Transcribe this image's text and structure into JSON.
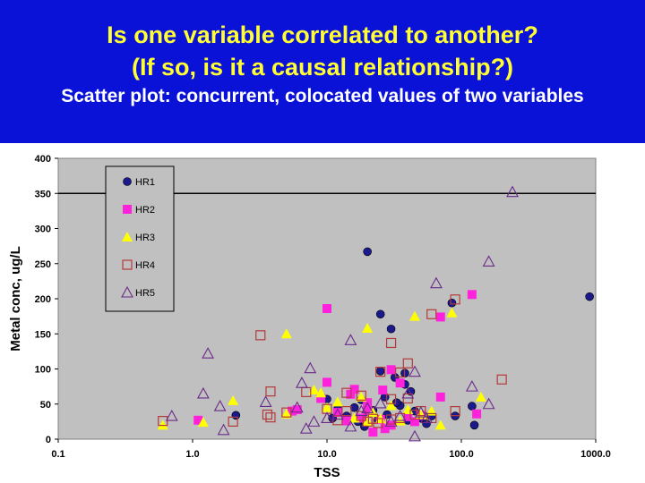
{
  "slide": {
    "title_line1": "Is one variable correlated to another?",
    "title_line2": "(If so, is it a causal relationship?)",
    "subtitle": "Scatter plot: concurrent, colocated values of two variables"
  },
  "colors": {
    "banner": "#0a12d8",
    "title_text": "#ffff33",
    "subtitle_text": "#ffffff",
    "plot_bg": "#c0c0c0",
    "HR1": "#1a1a8c",
    "HR2": "#ff22dd",
    "HR3": "#ffff00",
    "HR4": "#b33a3a",
    "HR5": "#6a2a8a"
  },
  "chart_data": {
    "type": "scatter",
    "title": "",
    "xlabel": "TSS",
    "ylabel": "Metal conc, ug/L",
    "x_scale": "log",
    "xlim": [
      0.1,
      1000
    ],
    "ylim": [
      0,
      400
    ],
    "x_ticks": [
      "0.1",
      "1.0",
      "10.0",
      "100.0",
      "1000.0"
    ],
    "y_ticks": [
      "0",
      "50",
      "100",
      "150",
      "200",
      "250",
      "300",
      "350",
      "400"
    ],
    "grid_y_major": [
      350
    ],
    "legend_position": "top-left",
    "series": [
      {
        "name": "HR1",
        "marker": "circle-filled",
        "points": [
          [
            20,
            267
          ],
          [
            25,
            178
          ],
          [
            30,
            157
          ],
          [
            85,
            194
          ],
          [
            900,
            203
          ],
          [
            25,
            97
          ],
          [
            32,
            88
          ],
          [
            38,
            78
          ],
          [
            42,
            68
          ],
          [
            10,
            57
          ],
          [
            18,
            56
          ],
          [
            35,
            48
          ],
          [
            45,
            40
          ],
          [
            60,
            33
          ],
          [
            120,
            47
          ],
          [
            12,
            43
          ],
          [
            22,
            41
          ],
          [
            28,
            35
          ],
          [
            50,
            30
          ],
          [
            2.1,
            34
          ],
          [
            14,
            33
          ],
          [
            17,
            25
          ],
          [
            40,
            27
          ],
          [
            125,
            20
          ],
          [
            19,
            18
          ],
          [
            55,
            22
          ],
          [
            33,
            52
          ],
          [
            90,
            33
          ],
          [
            11,
            30
          ],
          [
            24,
            28
          ],
          [
            38,
            94
          ],
          [
            16,
            45
          ],
          [
            27,
            60
          ]
        ]
      },
      {
        "name": "HR2",
        "marker": "square-filled",
        "points": [
          [
            10,
            186
          ],
          [
            120,
            206
          ],
          [
            70,
            174
          ],
          [
            30,
            99
          ],
          [
            35,
            80
          ],
          [
            10,
            81
          ],
          [
            26,
            70
          ],
          [
            16,
            71
          ],
          [
            15,
            64
          ],
          [
            9,
            58
          ],
          [
            20,
            52
          ],
          [
            70,
            60
          ],
          [
            5.5,
            40
          ],
          [
            12,
            38
          ],
          [
            18,
            30
          ],
          [
            25,
            28
          ],
          [
            40,
            32
          ],
          [
            30,
            20
          ],
          [
            22,
            10
          ],
          [
            1.1,
            27
          ],
          [
            6,
            42
          ],
          [
            130,
            36
          ],
          [
            45,
            25
          ],
          [
            14,
            26
          ],
          [
            27,
            15
          ],
          [
            20,
            40
          ],
          [
            50,
            34
          ]
        ]
      },
      {
        "name": "HR3",
        "marker": "triangle-filled",
        "points": [
          [
            5,
            150
          ],
          [
            20,
            158
          ],
          [
            45,
            175
          ],
          [
            85,
            180
          ],
          [
            0.6,
            20
          ],
          [
            1.2,
            24
          ],
          [
            2,
            55
          ],
          [
            5,
            36
          ],
          [
            8,
            70
          ],
          [
            9,
            66
          ],
          [
            12,
            53
          ],
          [
            18,
            60
          ],
          [
            22,
            38
          ],
          [
            25,
            29
          ],
          [
            30,
            48
          ],
          [
            35,
            26
          ],
          [
            40,
            42
          ],
          [
            50,
            35
          ],
          [
            70,
            20
          ],
          [
            140,
            60
          ],
          [
            10,
            45
          ],
          [
            16,
            30
          ],
          [
            60,
            40
          ],
          [
            20,
            25
          ]
        ]
      },
      {
        "name": "HR4",
        "marker": "square-open",
        "points": [
          [
            3.2,
            148
          ],
          [
            90,
            199
          ],
          [
            60,
            178
          ],
          [
            30,
            137
          ],
          [
            200,
            85
          ],
          [
            40,
            108
          ],
          [
            35,
            95
          ],
          [
            25,
            96
          ],
          [
            3.8,
            68
          ],
          [
            7,
            67
          ],
          [
            14,
            66
          ],
          [
            18,
            62
          ],
          [
            30,
            57
          ],
          [
            40,
            58
          ],
          [
            3.6,
            35
          ],
          [
            3.8,
            31
          ],
          [
            5,
            38
          ],
          [
            10,
            43
          ],
          [
            14,
            40
          ],
          [
            18,
            33
          ],
          [
            22,
            29
          ],
          [
            24,
            23
          ],
          [
            30,
            28
          ],
          [
            45,
            35
          ],
          [
            50,
            40
          ],
          [
            90,
            40
          ],
          [
            2,
            25
          ],
          [
            0.6,
            26
          ],
          [
            20,
            25
          ],
          [
            12,
            27
          ],
          [
            35,
            30
          ],
          [
            60,
            30
          ]
        ]
      },
      {
        "name": "HR5",
        "marker": "triangle-open",
        "points": [
          [
            240,
            352
          ],
          [
            160,
            253
          ],
          [
            65,
            222
          ],
          [
            15,
            141
          ],
          [
            1.3,
            122
          ],
          [
            7.5,
            101
          ],
          [
            6.5,
            80
          ],
          [
            1.2,
            65
          ],
          [
            0.7,
            33
          ],
          [
            1.6,
            47
          ],
          [
            1.7,
            13
          ],
          [
            3.5,
            53
          ],
          [
            7,
            15
          ],
          [
            45,
            96
          ],
          [
            120,
            75
          ],
          [
            160,
            50
          ],
          [
            40,
            65
          ],
          [
            25,
            51
          ],
          [
            20,
            44
          ],
          [
            18,
            40
          ],
          [
            12,
            35
          ],
          [
            10,
            30
          ],
          [
            35,
            33
          ],
          [
            30,
            25
          ],
          [
            45,
            4
          ],
          [
            50,
            38
          ],
          [
            8,
            25
          ],
          [
            6,
            45
          ],
          [
            15,
            18
          ],
          [
            55,
            30
          ]
        ]
      }
    ]
  }
}
